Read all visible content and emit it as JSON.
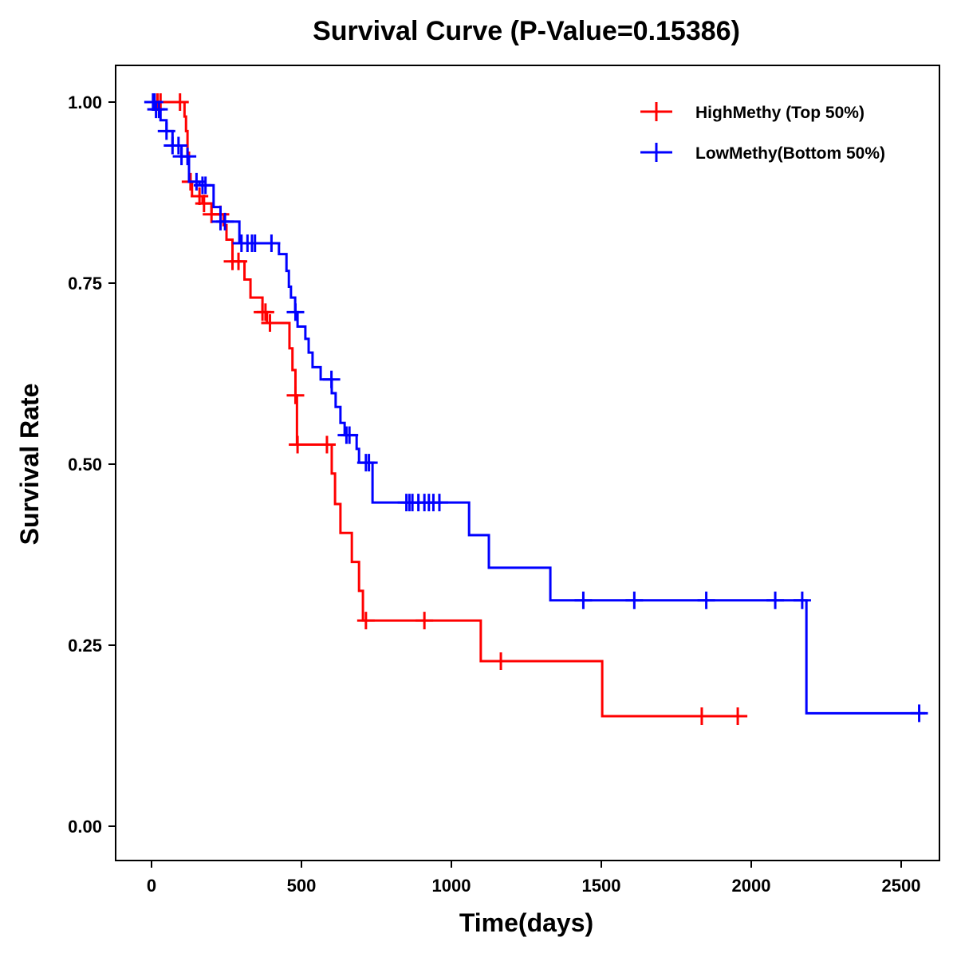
{
  "chart_data": {
    "type": "line",
    "subtype": "kaplan-meier",
    "title": "Survival Curve (P-Value=0.15386)",
    "xlabel": "Time(days)",
    "ylabel": "Survival Rate",
    "xlim": [
      -120,
      2620
    ],
    "ylim": [
      -0.05,
      1.05
    ],
    "xticks": [
      "0",
      "500",
      "1000",
      "1500",
      "2000",
      "2500"
    ],
    "yticks": [
      "0.00",
      "0.25",
      "0.50",
      "0.75",
      "1.00"
    ],
    "grid": false,
    "legend_position": "top-right",
    "series": [
      {
        "name": "HighMethy (Top 50%)",
        "color": "#ff0000",
        "steps": [
          [
            0,
            1.0
          ],
          [
            110,
            0.98
          ],
          [
            115,
            0.96
          ],
          [
            120,
            0.93
          ],
          [
            125,
            0.9
          ],
          [
            130,
            0.89
          ],
          [
            135,
            0.87
          ],
          [
            170,
            0.86
          ],
          [
            200,
            0.845
          ],
          [
            240,
            0.83
          ],
          [
            250,
            0.81
          ],
          [
            270,
            0.78
          ],
          [
            310,
            0.755
          ],
          [
            330,
            0.73
          ],
          [
            370,
            0.71
          ],
          [
            385,
            0.695
          ],
          [
            460,
            0.66
          ],
          [
            470,
            0.63
          ],
          [
            480,
            0.595
          ],
          [
            485,
            0.527
          ],
          [
            601,
            0.487
          ],
          [
            612,
            0.445
          ],
          [
            630,
            0.405
          ],
          [
            668,
            0.365
          ],
          [
            692,
            0.325
          ],
          [
            705,
            0.284
          ],
          [
            1098,
            0.228
          ],
          [
            1503,
            0.152
          ]
        ],
        "end": 1987,
        "censored": [
          10,
          20,
          30,
          95,
          130,
          160,
          175,
          200,
          230,
          270,
          290,
          370,
          380,
          395,
          480,
          487,
          585,
          715,
          910,
          1165,
          1835,
          1955
        ]
      },
      {
        "name": "LowMethy(Bottom 50%)",
        "color": "#0000ff",
        "steps": [
          [
            0,
            1.0
          ],
          [
            15,
            0.99
          ],
          [
            30,
            0.975
          ],
          [
            50,
            0.96
          ],
          [
            70,
            0.94
          ],
          [
            100,
            0.925
          ],
          [
            125,
            0.89
          ],
          [
            160,
            0.885
          ],
          [
            207,
            0.855
          ],
          [
            230,
            0.835
          ],
          [
            293,
            0.805
          ],
          [
            425,
            0.79
          ],
          [
            450,
            0.767
          ],
          [
            458,
            0.745
          ],
          [
            465,
            0.73
          ],
          [
            479,
            0.71
          ],
          [
            487,
            0.69
          ],
          [
            513,
            0.673
          ],
          [
            524,
            0.654
          ],
          [
            537,
            0.634
          ],
          [
            564,
            0.617
          ],
          [
            601,
            0.598
          ],
          [
            614,
            0.579
          ],
          [
            630,
            0.557
          ],
          [
            644,
            0.54
          ],
          [
            684,
            0.521
          ],
          [
            692,
            0.502
          ],
          [
            737,
            0.447
          ],
          [
            1059,
            0.402
          ],
          [
            1125,
            0.357
          ],
          [
            1330,
            0.312
          ],
          [
            2184,
            0.156
          ]
        ],
        "end": 2580,
        "censored": [
          5,
          10,
          15,
          25,
          50,
          70,
          90,
          100,
          120,
          150,
          170,
          180,
          230,
          245,
          300,
          320,
          335,
          345,
          400,
          480,
          600,
          650,
          660,
          715,
          725,
          850,
          860,
          870,
          890,
          910,
          925,
          940,
          960,
          1440,
          1610,
          1850,
          2080,
          2170,
          2560
        ]
      }
    ]
  }
}
